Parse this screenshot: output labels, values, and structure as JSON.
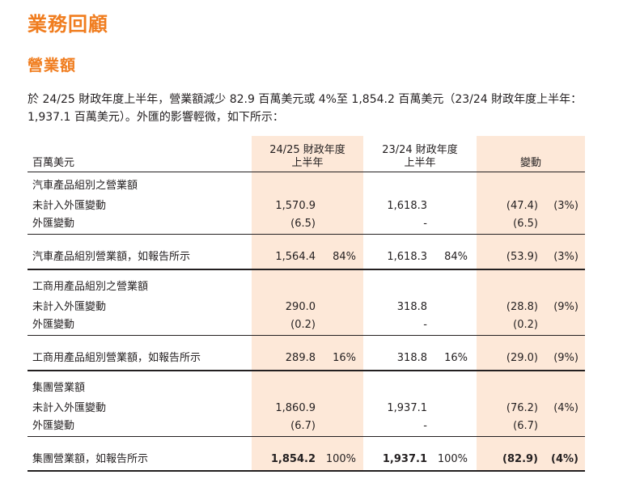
{
  "heading": "業務回顧",
  "subheading": "營業額",
  "intro": "於 24/25 財政年度上半年，營業額減少 82.9 百萬美元或 4%至 1,854.2 百萬美元（23/24 財政年度上半年：1,937.1 百萬美元）。外匯的影響輕微，如下所示：",
  "table": {
    "unit_label": "百萬美元",
    "col1_line1": "24/25 財政年度",
    "col1_line2": "上半年",
    "col2_line1": "23/24 財政年度",
    "col2_line2": "上半年",
    "col3": "變動",
    "rows": [
      {
        "label": "汽車產品組別之營業額",
        "c1": "",
        "p1": "",
        "c2": "",
        "p2": "",
        "c3": "",
        "p3": ""
      },
      {
        "label": "未計入外匯變動",
        "c1": "1,570.9",
        "p1": "",
        "c2": "1,618.3",
        "p2": "",
        "c3": "(47.4)",
        "p3": "(3%)"
      },
      {
        "label": "外匯變動",
        "c1": "(6.5)",
        "p1": "",
        "c2": "-",
        "p2": "",
        "c3": "(6.5)",
        "p3": ""
      },
      {
        "label": "汽車產品組別營業額，如報告所示",
        "c1": "1,564.4",
        "p1": "84%",
        "c2": "1,618.3",
        "p2": "84%",
        "c3": "(53.9)",
        "p3": "(3%)"
      },
      {
        "label": "工商用產品組別之營業額",
        "c1": "",
        "p1": "",
        "c2": "",
        "p2": "",
        "c3": "",
        "p3": ""
      },
      {
        "label": "未計入外匯變動",
        "c1": "290.0",
        "p1": "",
        "c2": "318.8",
        "p2": "",
        "c3": "(28.8)",
        "p3": "(9%)"
      },
      {
        "label": "外匯變動",
        "c1": "(0.2)",
        "p1": "",
        "c2": "-",
        "p2": "",
        "c3": "(0.2)",
        "p3": ""
      },
      {
        "label": "工商用產品組別營業額，如報告所示",
        "c1": "289.8",
        "p1": "16%",
        "c2": "318.8",
        "p2": "16%",
        "c3": "(29.0)",
        "p3": "(9%)"
      },
      {
        "label": "集團營業額",
        "c1": "",
        "p1": "",
        "c2": "",
        "p2": "",
        "c3": "",
        "p3": ""
      },
      {
        "label": "未計入外匯變動",
        "c1": "1,860.9",
        "p1": "",
        "c2": "1,937.1",
        "p2": "",
        "c3": "(76.2)",
        "p3": "(4%)"
      },
      {
        "label": "外匯變動",
        "c1": "(6.7)",
        "p1": "",
        "c2": "-",
        "p2": "",
        "c3": "(6.7)",
        "p3": ""
      },
      {
        "label": "集團營業額，如報告所示",
        "c1": "1,854.2",
        "p1": "100%",
        "c2": "1,937.1",
        "p2": "100%",
        "c3": "(82.9)",
        "p3": "(4%)"
      }
    ]
  }
}
